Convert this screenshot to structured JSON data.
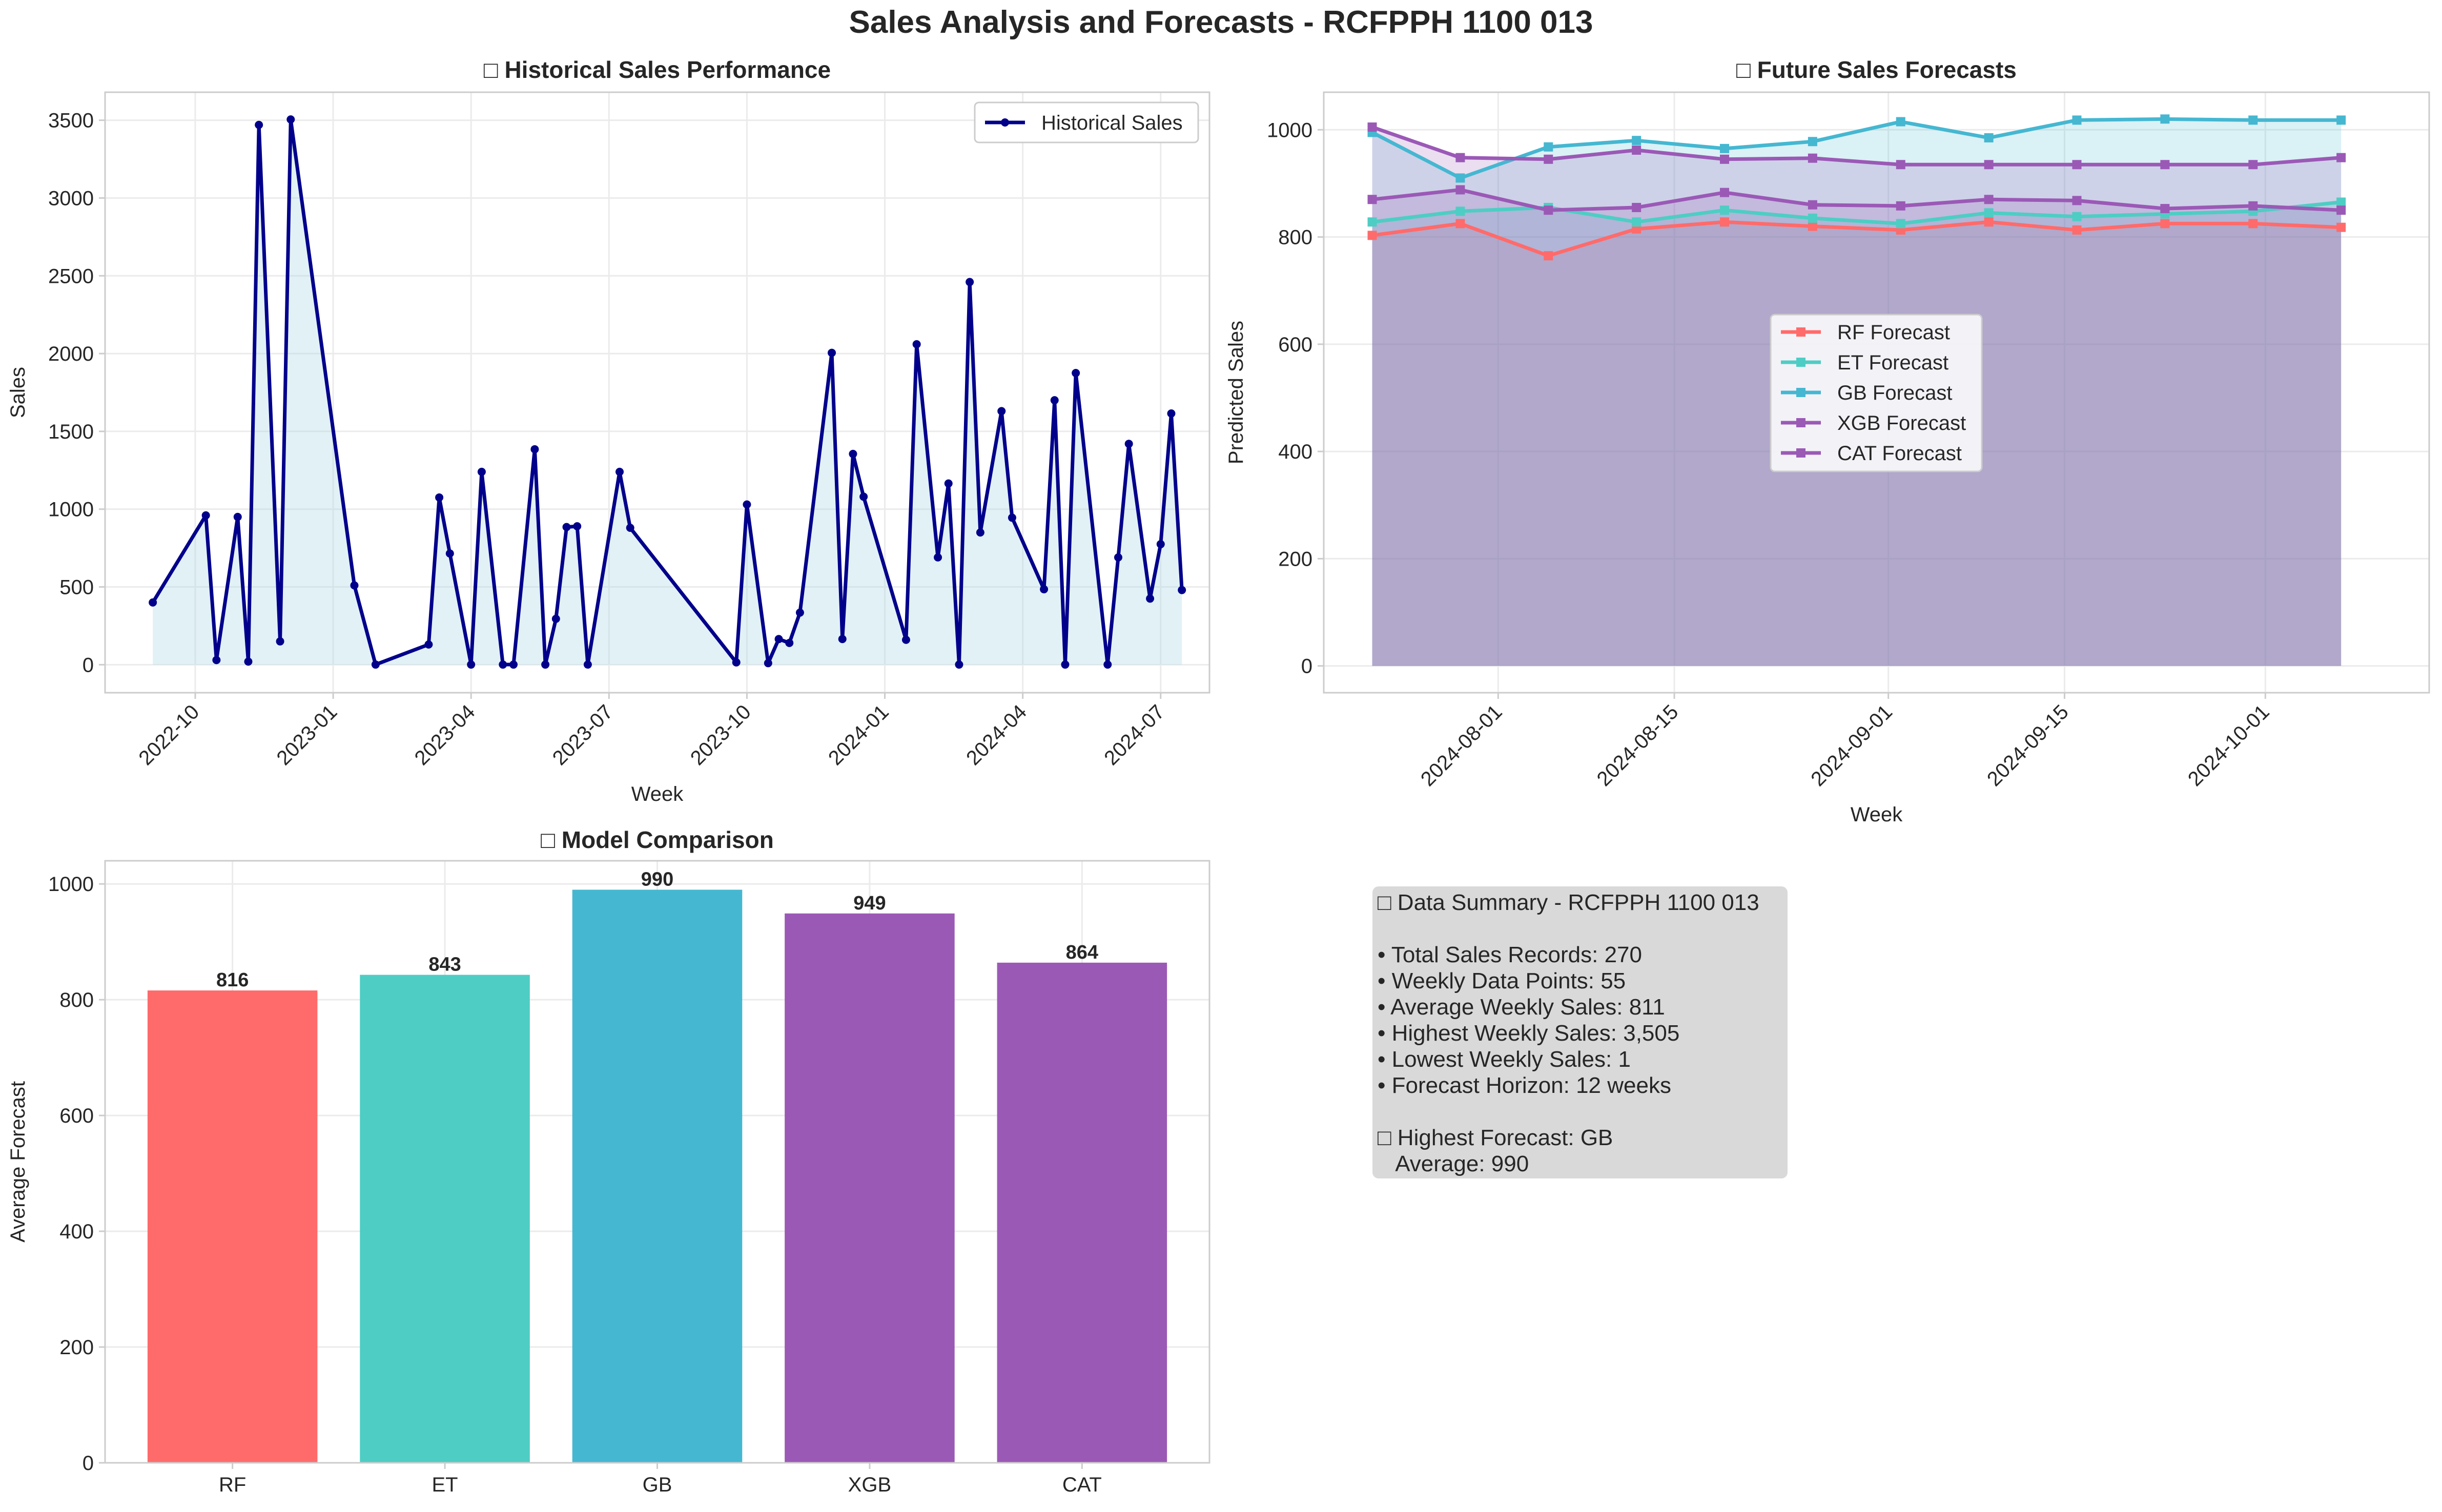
{
  "figure_title": "Sales Analysis and Forecasts - RCFPPH 1100 013",
  "colors": {
    "historical": "#00008b",
    "historical_fill": "#add8e6",
    "RF": "#ff6b6b",
    "ET": "#4ecdc4",
    "GB": "#45b7d1",
    "XGB": "#9b59b6",
    "CAT": "#9b59b6",
    "summary_bg": "#d9d9d9"
  },
  "chart_data": [
    {
      "id": "historical",
      "type": "line",
      "title": "□ Historical Sales Performance",
      "xlabel": "Week",
      "ylabel": "Sales",
      "legend": [
        "Historical Sales"
      ],
      "legend_position": "top-right",
      "grid": true,
      "ylim": [
        -180,
        3680
      ],
      "yticks": [
        0,
        500,
        1000,
        1500,
        2000,
        2500,
        3000,
        3500
      ],
      "xticks": [
        {
          "label": "2022-10",
          "week": 4
        },
        {
          "label": "2023-01",
          "week": 17
        },
        {
          "label": "2023-04",
          "week": 30
        },
        {
          "label": "2023-07",
          "week": 43
        },
        {
          "label": "2023-10",
          "week": 56
        },
        {
          "label": "2024-01",
          "week": 69
        },
        {
          "label": "2024-04",
          "week": 82
        },
        {
          "label": "2024-07",
          "week": 95
        }
      ],
      "xlim": [
        -4.5,
        99.6
      ],
      "points": [
        [
          0,
          400
        ],
        [
          5,
          960
        ],
        [
          6,
          30
        ],
        [
          8,
          950
        ],
        [
          9,
          20
        ],
        [
          10,
          3470
        ],
        [
          12,
          150
        ],
        [
          13,
          3505
        ],
        [
          19,
          510
        ],
        [
          21,
          1
        ],
        [
          26,
          130
        ],
        [
          27,
          1075
        ],
        [
          28,
          715
        ],
        [
          30,
          1
        ],
        [
          31,
          1240
        ],
        [
          33,
          1
        ],
        [
          34,
          1
        ],
        [
          36,
          1385
        ],
        [
          37,
          1
        ],
        [
          38,
          295
        ],
        [
          39,
          885
        ],
        [
          40,
          890
        ],
        [
          41,
          1
        ],
        [
          44,
          1240
        ],
        [
          45,
          880
        ],
        [
          55,
          15
        ],
        [
          56,
          1030
        ],
        [
          58,
          10
        ],
        [
          59,
          165
        ],
        [
          60,
          140
        ],
        [
          61,
          335
        ],
        [
          64,
          2005
        ],
        [
          65,
          165
        ],
        [
          66,
          1355
        ],
        [
          67,
          1080
        ],
        [
          71,
          160
        ],
        [
          72,
          2060
        ],
        [
          74,
          690
        ],
        [
          75,
          1165
        ],
        [
          76,
          1
        ],
        [
          77,
          2460
        ],
        [
          78,
          850
        ],
        [
          80,
          1630
        ],
        [
          81,
          945
        ],
        [
          84,
          485
        ],
        [
          85,
          1700
        ],
        [
          86,
          1
        ],
        [
          87,
          1875
        ],
        [
          90,
          1
        ],
        [
          91,
          690
        ],
        [
          92,
          1420
        ],
        [
          94,
          425
        ],
        [
          95,
          775
        ],
        [
          96,
          1615
        ],
        [
          97,
          480
        ]
      ]
    },
    {
      "id": "forecasts",
      "type": "line",
      "title": "□ Future Sales Forecasts",
      "xlabel": "Week",
      "ylabel": "Predicted Sales",
      "legend_position": "center",
      "grid": true,
      "ylim": [
        -50,
        1070
      ],
      "yticks": [
        0,
        200,
        400,
        600,
        800,
        1000
      ],
      "x": [
        "2024-07-21",
        "2024-07-28",
        "2024-08-04",
        "2024-08-11",
        "2024-08-18",
        "2024-08-25",
        "2024-09-01",
        "2024-09-08",
        "2024-09-15",
        "2024-09-22",
        "2024-09-29",
        "2024-10-06"
      ],
      "xlim": [
        -0.55,
        12.0
      ],
      "xticks": [
        {
          "label": "2024-08-01",
          "pos": 1.43
        },
        {
          "label": "2024-08-15",
          "pos": 3.43
        },
        {
          "label": "2024-09-01",
          "pos": 5.86
        },
        {
          "label": "2024-09-15",
          "pos": 7.86
        },
        {
          "label": "2024-10-01",
          "pos": 10.14
        }
      ],
      "series": [
        {
          "name": "RF Forecast",
          "key": "RF",
          "values": [
            803,
            825,
            765,
            815,
            828,
            820,
            813,
            828,
            813,
            825,
            825,
            818
          ]
        },
        {
          "name": "ET Forecast",
          "key": "ET",
          "values": [
            828,
            848,
            855,
            828,
            850,
            835,
            825,
            845,
            838,
            843,
            848,
            865
          ]
        },
        {
          "name": "GB Forecast",
          "key": "GB",
          "values": [
            995,
            910,
            968,
            980,
            965,
            978,
            1015,
            985,
            1018,
            1020,
            1018,
            1018
          ]
        },
        {
          "name": "XGB Forecast",
          "key": "XGB",
          "values": [
            1005,
            948,
            945,
            962,
            945,
            947,
            935,
            935,
            935,
            935,
            935,
            948
          ]
        },
        {
          "name": "CAT Forecast",
          "key": "CAT",
          "values": [
            870,
            888,
            850,
            855,
            883,
            860,
            858,
            870,
            868,
            853,
            858,
            850
          ]
        }
      ]
    },
    {
      "id": "comparison",
      "type": "bar",
      "title": "□ Model Comparison",
      "xlabel": "",
      "ylabel": "Average Forecast",
      "grid": true,
      "ylim": [
        0,
        1040
      ],
      "yticks": [
        0,
        200,
        400,
        600,
        800,
        1000
      ],
      "categories": [
        "RF",
        "ET",
        "GB",
        "XGB",
        "CAT"
      ],
      "values": [
        816,
        843,
        990,
        949,
        864
      ],
      "data_labels": [
        "816",
        "843",
        "990",
        "949",
        "864"
      ]
    }
  ],
  "summary": {
    "title": "□ Data Summary - RCFPPH 1100 013",
    "items": [
      "• Total Sales Records: 270",
      "• Weekly Data Points: 55",
      "• Average Weekly Sales: 811",
      "• Highest Weekly Sales: 3,505",
      "• Lowest Weekly Sales: 1",
      "• Forecast Horizon: 12 weeks"
    ],
    "highest_forecast": "□ Highest Forecast: GB",
    "highest_average": "   Average: 990"
  }
}
